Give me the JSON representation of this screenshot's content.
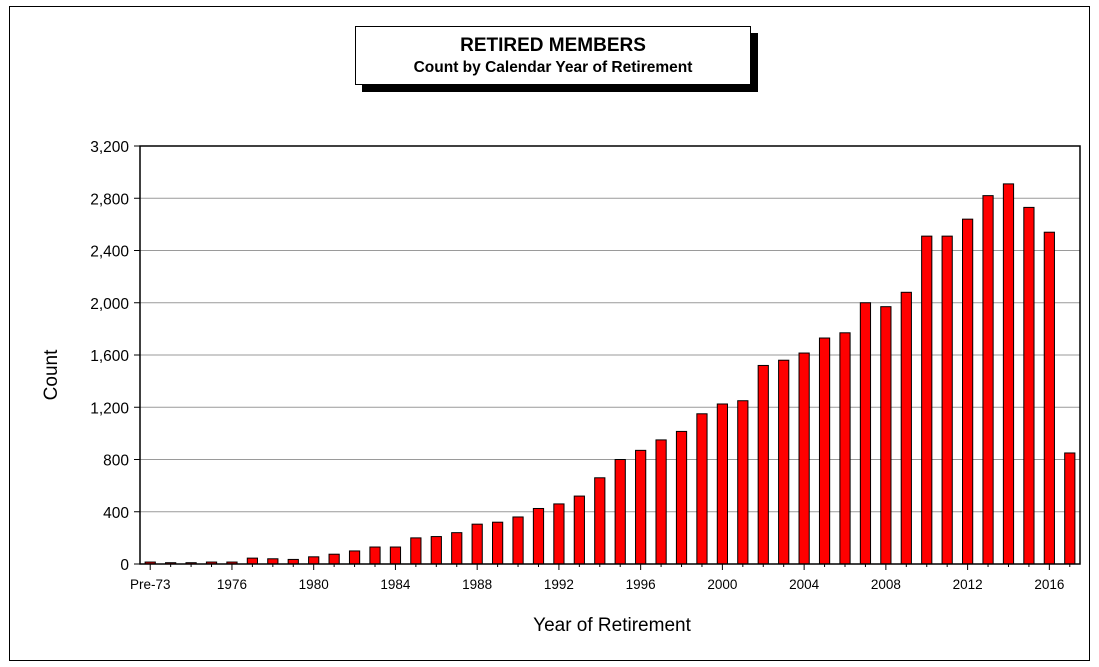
{
  "chart_data": {
    "type": "bar",
    "title": "RETIRED MEMBERS",
    "subtitle": "Count by Calendar Year of Retirement",
    "xlabel": "Year of Retirement",
    "ylabel": "Count",
    "ylim": [
      0,
      3200
    ],
    "yticks": [
      "0",
      "400",
      "800",
      "1,200",
      "1,600",
      "2,000",
      "2,400",
      "2,800",
      "3,200"
    ],
    "categories": [
      "Pre-73",
      "1973",
      "1974",
      "1975",
      "1976",
      "1977",
      "1978",
      "1979",
      "1980",
      "1981",
      "1982",
      "1983",
      "1984",
      "1985",
      "1986",
      "1987",
      "1988",
      "1989",
      "1990",
      "1991",
      "1992",
      "1993",
      "1994",
      "1995",
      "1996",
      "1997",
      "1998",
      "1999",
      "2000",
      "2001",
      "2002",
      "2003",
      "2004",
      "2005",
      "2006",
      "2007",
      "2008",
      "2009",
      "2010",
      "2011",
      "2012",
      "2013",
      "2014",
      "2015",
      "2016",
      "2017"
    ],
    "xtick_labels": [
      "Pre-73",
      "",
      "",
      "",
      "1976",
      "",
      "",
      "",
      "1980",
      "",
      "",
      "",
      "1984",
      "",
      "",
      "",
      "1988",
      "",
      "",
      "",
      "1992",
      "",
      "",
      "",
      "1996",
      "",
      "",
      "",
      "2000",
      "",
      "",
      "",
      "2004",
      "",
      "",
      "",
      "2008",
      "",
      "",
      "",
      "2012",
      "",
      "",
      "",
      "2016",
      ""
    ],
    "values": [
      15,
      10,
      10,
      15,
      15,
      45,
      40,
      35,
      55,
      75,
      100,
      130,
      130,
      200,
      210,
      240,
      305,
      320,
      360,
      425,
      460,
      520,
      660,
      800,
      870,
      950,
      1015,
      1150,
      1225,
      1250,
      1520,
      1560,
      1615,
      1730,
      1770,
      2000,
      1970,
      2080,
      2510,
      2510,
      2640,
      2820,
      2910,
      2730,
      2540,
      850
    ],
    "bar_color": "#ff0000",
    "grid": true,
    "legend": "none"
  }
}
